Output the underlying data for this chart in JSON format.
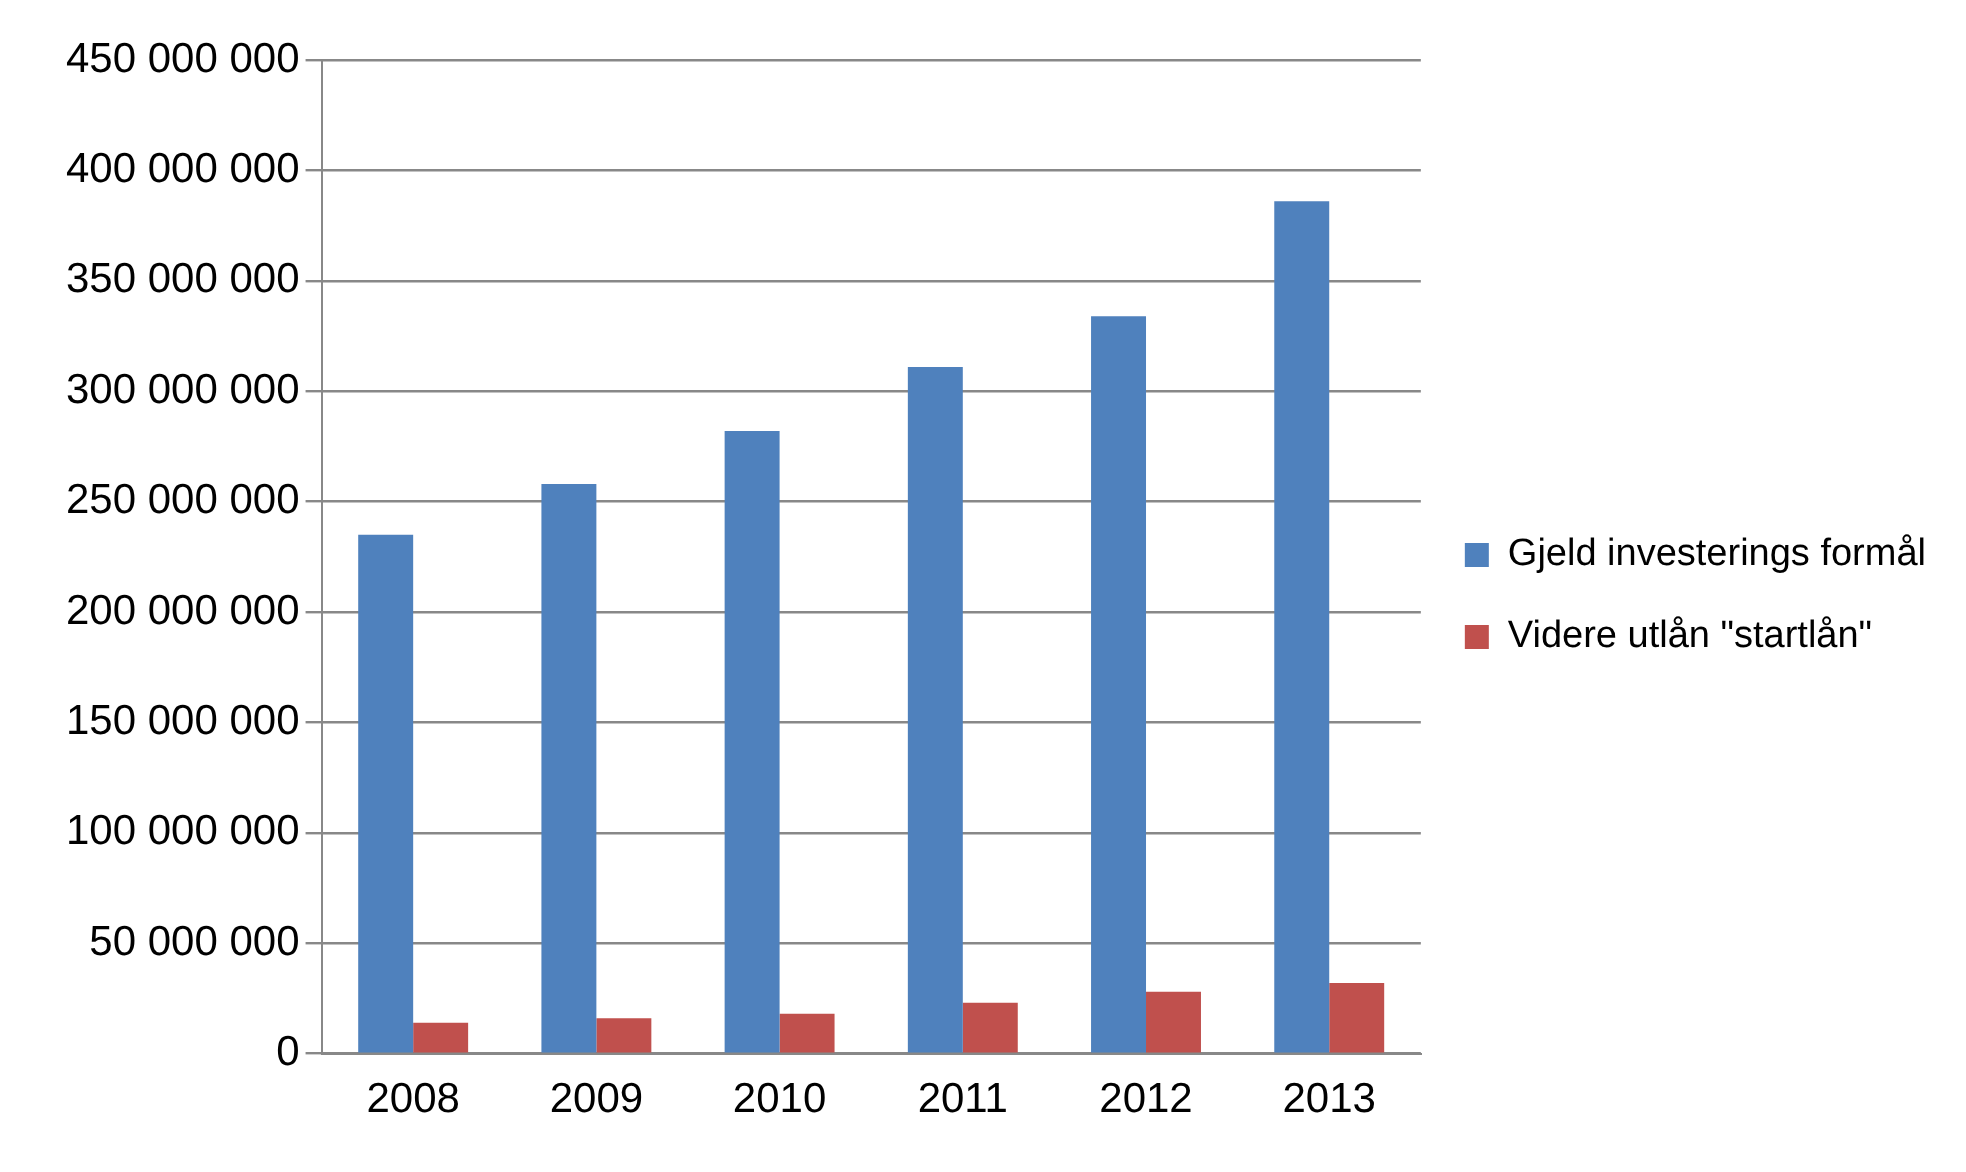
{
  "chart_data": {
    "type": "bar",
    "categories": [
      "2008",
      "2009",
      "2010",
      "2011",
      "2012",
      "2013"
    ],
    "series": [
      {
        "name": "Gjeld investerings formål",
        "color": "#4f81bd",
        "values": [
          235000000,
          258000000,
          282000000,
          311000000,
          334000000,
          386000000
        ]
      },
      {
        "name": "Videre utlån \"startlån\"",
        "color": "#c0504d",
        "values": [
          14000000,
          16000000,
          18000000,
          23000000,
          28000000,
          32000000
        ]
      }
    ],
    "ylim": [
      0,
      450000000
    ],
    "yticks": [
      {
        "value": 0,
        "label": "0"
      },
      {
        "value": 50000000,
        "label": "50 000 000"
      },
      {
        "value": 100000000,
        "label": "100 000 000"
      },
      {
        "value": 150000000,
        "label": "150 000 000"
      },
      {
        "value": 200000000,
        "label": "200 000 000"
      },
      {
        "value": 250000000,
        "label": "250 000 000"
      },
      {
        "value": 300000000,
        "label": "300 000 000"
      },
      {
        "value": 350000000,
        "label": "350 000 000"
      },
      {
        "value": 400000000,
        "label": "400 000 000"
      },
      {
        "value": 450000000,
        "label": "450 000 000"
      }
    ],
    "grid": "y",
    "legend": "right"
  }
}
